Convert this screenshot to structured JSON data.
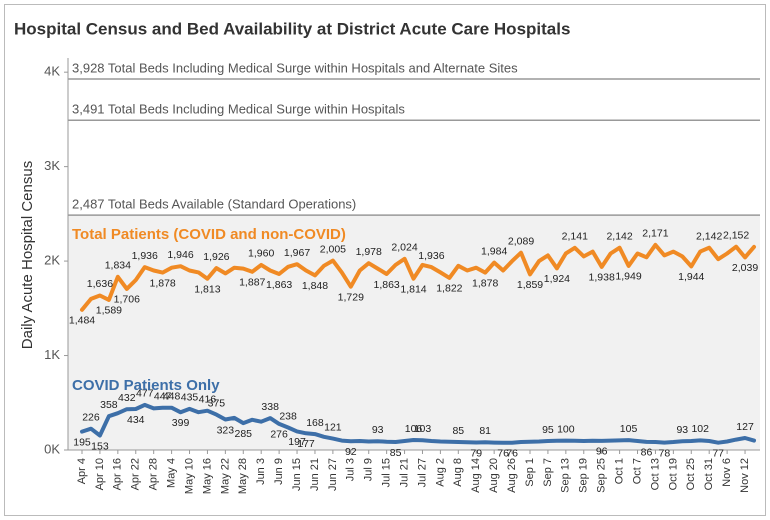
{
  "chart_data": {
    "type": "line",
    "title": "Hospital Census and Bed Availability at District Acute Care Hospitals",
    "y_label": "Daily Acute Hospital Census",
    "ylim": [
      0,
      4150
    ],
    "yticks": [
      {
        "value": 0,
        "label": "0K"
      },
      {
        "value": 1000,
        "label": "1K"
      },
      {
        "value": 2000,
        "label": "2K"
      },
      {
        "value": 3000,
        "label": "3K"
      },
      {
        "value": 4000,
        "label": "4K"
      }
    ],
    "reference_lines": [
      {
        "value": 3928,
        "label": "3,928 Total Beds Including Medical Surge within Hospitals and Alternate Sites"
      },
      {
        "value": 3491,
        "label": "3,491 Total Beds Including Medical Surge within Hospitals"
      },
      {
        "value": 2487,
        "label": "2,487 Total Beds Available (Standard Operations)"
      }
    ],
    "shade_below": 2487,
    "categories": [
      "Apr 4",
      null,
      "Apr 10",
      null,
      "Apr 16",
      null,
      "Apr 22",
      null,
      "Apr 28",
      null,
      "May 4",
      null,
      "May 10",
      null,
      "May 16",
      null,
      "May 22",
      null,
      "May 28",
      null,
      "Jun 3",
      null,
      "Jun 9",
      null,
      "Jun 15",
      null,
      "Jun 21",
      null,
      "Jun 27",
      null,
      "Jul 3",
      null,
      "Jul 9",
      null,
      "Jul 15",
      null,
      "Jul 21",
      null,
      "Jul 27",
      null,
      "Aug 2",
      null,
      "Aug 8",
      null,
      "Aug 14",
      null,
      "Aug 20",
      null,
      "Aug 26",
      null,
      "Sep 1",
      null,
      "Sep 7",
      null,
      "Sep 13",
      null,
      "Sep 19",
      null,
      "Sep 25",
      null,
      "Oct 1",
      null,
      "Oct 7",
      null,
      "Oct 13",
      null,
      "Oct 19",
      null,
      "Oct 25",
      null,
      "Oct 31",
      null,
      "Nov 6",
      null,
      "Nov 12",
      null
    ],
    "series": [
      {
        "name": "Total Patients (COVID and non-COVID)",
        "color": "#f08a24",
        "values": [
          1484,
          1600,
          1636,
          1589,
          1834,
          1706,
          1800,
          1936,
          1900,
          1878,
          1930,
          1946,
          1900,
          1880,
          1813,
          1926,
          1870,
          1930,
          1920,
          1887,
          1960,
          1900,
          1863,
          1940,
          1967,
          1900,
          1848,
          1950,
          2005,
          1880,
          1729,
          1900,
          1978,
          1920,
          1863,
          1960,
          2024,
          1814,
          1960,
          1936,
          1880,
          1822,
          1950,
          1900,
          1930,
          1878,
          1984,
          1900,
          2000,
          2089,
          1859,
          2000,
          2060,
          1924,
          2080,
          2141,
          2050,
          2100,
          1938,
          2080,
          2142,
          1949,
          2080,
          2040,
          2171,
          2060,
          2100,
          2050,
          1944,
          2100,
          2142,
          2020,
          2080,
          2152,
          2039,
          2150
        ],
        "value_labels": [
          "1,484",
          null,
          "1,636",
          "1,589",
          "1,834",
          "1,706",
          null,
          "1,936",
          null,
          "1,878",
          null,
          "1,946",
          null,
          null,
          "1,813",
          "1,926",
          null,
          null,
          null,
          "1,887",
          "1,960",
          null,
          "1,863",
          null,
          "1,967",
          null,
          "1,848",
          null,
          "2,005",
          null,
          "1,729",
          null,
          "1,978",
          null,
          "1,863",
          null,
          "2,024",
          "1,814",
          null,
          "1,936",
          null,
          "1,822",
          null,
          null,
          null,
          "1,878",
          "1,984",
          null,
          null,
          "2,089",
          "1,859",
          null,
          null,
          "1,924",
          null,
          "2,141",
          null,
          null,
          "1,938",
          null,
          "2,142",
          "1,949",
          null,
          null,
          "2,171",
          null,
          null,
          null,
          "1,944",
          null,
          "2,142",
          null,
          null,
          "2,152",
          "2,039",
          null
        ]
      },
      {
        "name": "COVID Patients Only",
        "color": "#3d6fa8",
        "values": [
          195,
          226,
          153,
          358,
          390,
          432,
          434,
          477,
          440,
          447,
          448,
          399,
          435,
          400,
          416,
          375,
          323,
          340,
          285,
          320,
          300,
          338,
          276,
          238,
          197,
          177,
          168,
          140,
          121,
          100,
          92,
          95,
          90,
          93,
          88,
          85,
          95,
          106,
          103,
          95,
          90,
          88,
          85,
          82,
          79,
          81,
          78,
          76,
          76,
          85,
          88,
          90,
          95,
          98,
          100,
          98,
          95,
          97,
          96,
          100,
          102,
          105,
          95,
          86,
          85,
          78,
          85,
          93,
          95,
          102,
          95,
          77,
          90,
          110,
          127,
          100
        ],
        "value_labels": [
          "195",
          "226",
          "153",
          "358",
          null,
          "432",
          "434",
          "477",
          null,
          "447",
          "448",
          "399",
          "435",
          null,
          "416",
          "375",
          "323",
          null,
          "285",
          null,
          null,
          "338",
          "276",
          "238",
          "197",
          "177",
          "168",
          null,
          "121",
          null,
          "92",
          null,
          null,
          "93",
          null,
          "85",
          null,
          "106",
          "103",
          null,
          null,
          null,
          "85",
          null,
          "79",
          "81",
          null,
          "76",
          "76",
          null,
          null,
          null,
          "95",
          null,
          "100",
          null,
          null,
          null,
          "96",
          null,
          null,
          "105",
          null,
          "86",
          null,
          "78",
          null,
          "93",
          null,
          "102",
          null,
          "77",
          null,
          null,
          "127",
          null
        ]
      }
    ]
  }
}
